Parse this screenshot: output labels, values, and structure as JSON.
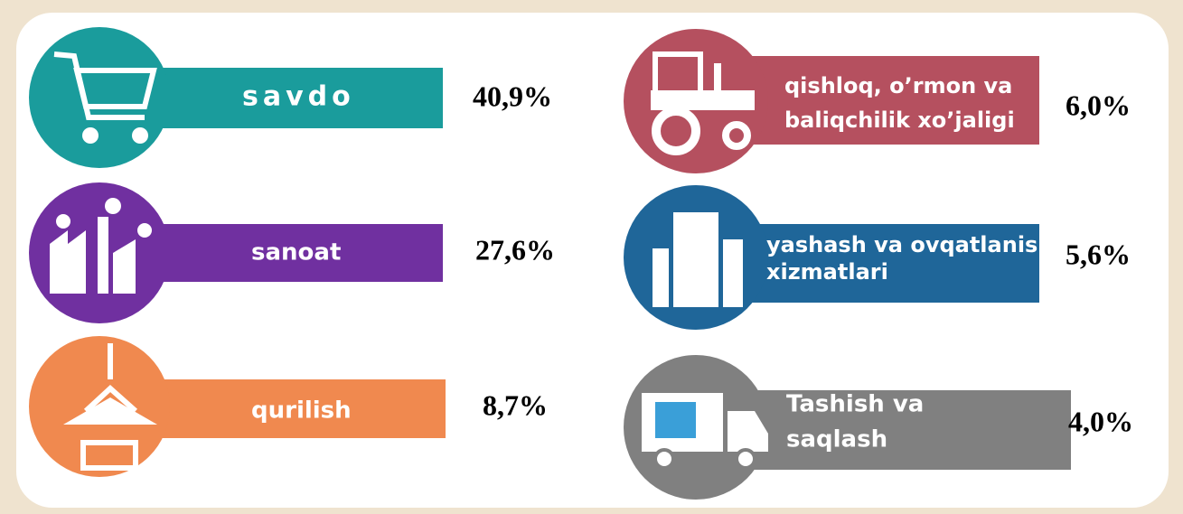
{
  "items": [
    {
      "lines": [
        "savdo"
      ],
      "value": "40,9%"
    },
    {
      "lines": [
        "sanoat"
      ],
      "value": "27,6%"
    },
    {
      "lines": [
        "qurilish"
      ],
      "value": "8,7%"
    },
    {
      "lines": [
        "qishloq, o’rmon va",
        "baliqchilik xo’jaligi"
      ],
      "value": "6,0%"
    },
    {
      "lines": [
        "yashash va ovqatlanish",
        "xizmatlari"
      ],
      "value": "5,6%"
    },
    {
      "lines": [
        "Tashish va",
        "saqlash"
      ],
      "value": "4,0%"
    }
  ]
}
